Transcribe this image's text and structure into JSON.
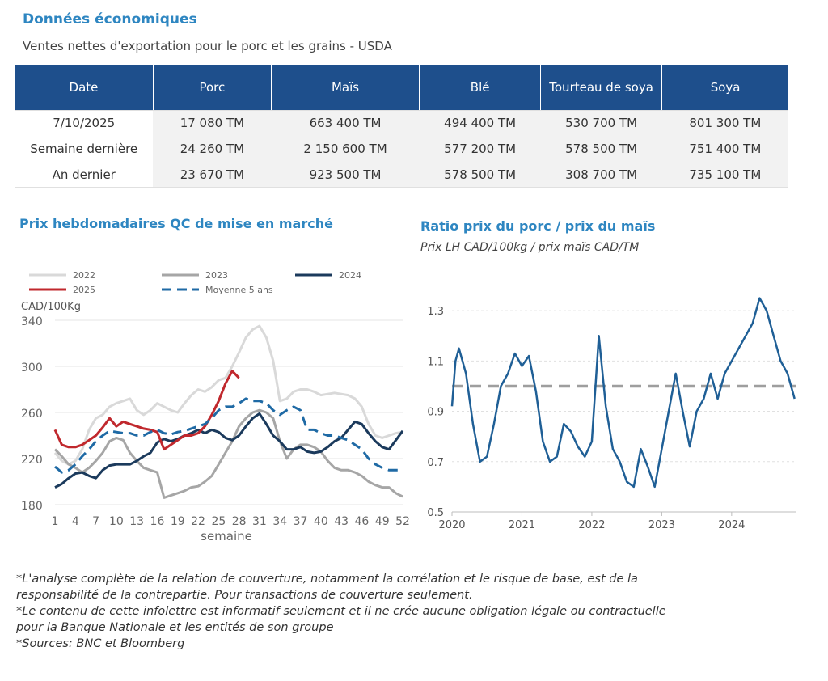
{
  "header": {
    "title": "Données économiques",
    "subtitle": "Ventes nettes d'exportation pour le porc et les grains - USDA"
  },
  "table": {
    "columns": [
      "Date",
      "Porc",
      "Maïs",
      "Blé",
      "Tourteau de soya",
      "Soya"
    ],
    "rows": [
      [
        "7/10/2025",
        "17 080 TM",
        "663 400 TM",
        "494 400 TM",
        "530 700 TM",
        "801 300 TM"
      ],
      [
        "Semaine dernière",
        "24 260 TM",
        "2 150 600 TM",
        "577 200 TM",
        "578 500 TM",
        "751 400 TM"
      ],
      [
        "An dernier",
        "23 670 TM",
        "923 500 TM",
        "578 500 TM",
        "308 700 TM",
        "735 100 TM"
      ]
    ]
  },
  "chart_data": [
    {
      "type": "line",
      "title": "Prix hebdomadaires QC de mise en marché",
      "ylabel": "CAD/100Kg",
      "xlabel": "semaine",
      "xlim": [
        1,
        52
      ],
      "ylim": [
        180,
        340
      ],
      "x_ticks": [
        1,
        4,
        7,
        10,
        13,
        16,
        19,
        22,
        25,
        28,
        31,
        34,
        37,
        40,
        43,
        46,
        49,
        52
      ],
      "y_ticks": [
        180,
        220,
        260,
        300,
        340
      ],
      "legend_position": "top",
      "series": [
        {
          "name": "2022",
          "color": "#d9d9d9",
          "style": "solid",
          "x": [
            1,
            2,
            3,
            4,
            5,
            6,
            7,
            8,
            9,
            10,
            11,
            12,
            13,
            14,
            15,
            16,
            17,
            18,
            19,
            20,
            21,
            22,
            23,
            24,
            25,
            26,
            27,
            28,
            29,
            30,
            31,
            32,
            33,
            34,
            35,
            36,
            37,
            38,
            39,
            40,
            41,
            42,
            43,
            44,
            45,
            46,
            47,
            48,
            49,
            50,
            51,
            52
          ],
          "values": [
            225,
            218,
            215,
            218,
            228,
            245,
            255,
            258,
            265,
            268,
            270,
            272,
            262,
            258,
            262,
            268,
            265,
            262,
            260,
            268,
            275,
            280,
            278,
            282,
            288,
            290,
            300,
            312,
            325,
            332,
            335,
            325,
            305,
            270,
            272,
            278,
            280,
            280,
            278,
            275,
            276,
            277,
            276,
            275,
            272,
            265,
            250,
            240,
            238,
            240,
            242,
            243
          ]
        },
        {
          "name": "2023",
          "color": "#a6a6a6",
          "style": "solid",
          "x": [
            1,
            2,
            3,
            4,
            5,
            6,
            7,
            8,
            9,
            10,
            11,
            12,
            13,
            14,
            15,
            16,
            17,
            18,
            19,
            20,
            21,
            22,
            23,
            24,
            25,
            26,
            27,
            28,
            29,
            30,
            31,
            32,
            33,
            34,
            35,
            36,
            37,
            38,
            39,
            40,
            41,
            42,
            43,
            44,
            45,
            46,
            47,
            48,
            49,
            50,
            51,
            52
          ],
          "values": [
            228,
            222,
            215,
            212,
            208,
            212,
            218,
            225,
            235,
            238,
            236,
            225,
            218,
            212,
            210,
            208,
            186,
            188,
            190,
            192,
            195,
            196,
            200,
            205,
            215,
            225,
            235,
            248,
            255,
            260,
            262,
            260,
            255,
            235,
            220,
            228,
            232,
            232,
            230,
            226,
            218,
            212,
            210,
            210,
            208,
            205,
            200,
            197,
            195,
            195,
            190,
            187
          ]
        },
        {
          "name": "2024",
          "color": "#1b3a5c",
          "style": "solid",
          "x": [
            1,
            2,
            3,
            4,
            5,
            6,
            7,
            8,
            9,
            10,
            11,
            12,
            13,
            14,
            15,
            16,
            17,
            18,
            19,
            20,
            21,
            22,
            23,
            24,
            25,
            26,
            27,
            28,
            29,
            30,
            31,
            32,
            33,
            34,
            35,
            36,
            37,
            38,
            39,
            40,
            41,
            42,
            43,
            44,
            45,
            46,
            47,
            48,
            49,
            50,
            51,
            52
          ],
          "values": [
            195,
            198,
            203,
            207,
            208,
            205,
            203,
            210,
            214,
            215,
            215,
            215,
            218,
            222,
            225,
            234,
            237,
            235,
            237,
            240,
            242,
            245,
            242,
            245,
            243,
            238,
            236,
            240,
            248,
            255,
            259,
            250,
            240,
            235,
            228,
            228,
            230,
            226,
            225,
            226,
            230,
            235,
            238,
            245,
            252,
            250,
            242,
            235,
            230,
            228,
            236,
            244
          ]
        },
        {
          "name": "2025",
          "color": "#c0282d",
          "style": "solid",
          "x": [
            1,
            2,
            3,
            4,
            5,
            6,
            7,
            8,
            9,
            10,
            11,
            12,
            13,
            14,
            15,
            16,
            17,
            18,
            19,
            20,
            21,
            22,
            23,
            24,
            25,
            26,
            27,
            28
          ],
          "values": [
            245,
            232,
            230,
            230,
            232,
            236,
            240,
            247,
            255,
            248,
            252,
            250,
            248,
            246,
            245,
            243,
            228,
            232,
            236,
            240,
            240,
            242,
            248,
            258,
            270,
            285,
            296,
            290
          ]
        },
        {
          "name": "Moyenne 5 ans",
          "color": "#1f6aa5",
          "style": "dashed",
          "x": [
            1,
            2,
            3,
            4,
            5,
            6,
            7,
            8,
            9,
            10,
            11,
            12,
            13,
            14,
            15,
            16,
            17,
            18,
            19,
            20,
            21,
            22,
            23,
            24,
            25,
            26,
            27,
            28,
            29,
            30,
            31,
            32,
            33,
            34,
            35,
            36,
            37,
            38,
            39,
            40,
            41,
            42,
            43,
            44,
            45,
            46,
            47,
            48,
            49,
            50,
            51,
            52
          ],
          "values": [
            213,
            208,
            210,
            215,
            222,
            228,
            235,
            240,
            244,
            243,
            242,
            242,
            240,
            240,
            243,
            245,
            242,
            241,
            243,
            244,
            246,
            248,
            250,
            255,
            262,
            265,
            265,
            268,
            272,
            270,
            270,
            268,
            262,
            258,
            262,
            265,
            262,
            245,
            245,
            242,
            240,
            240,
            238,
            236,
            232,
            228,
            220,
            215,
            212,
            210,
            210,
            210
          ]
        }
      ]
    },
    {
      "type": "line",
      "title": "Ratio prix du porc / prix du maïs",
      "subtitle": "Prix LH CAD/100kg / prix maïs CAD/TM",
      "x_ticks": [
        "2020",
        "2021",
        "2022",
        "2023",
        "2024"
      ],
      "y_ticks": [
        0.5,
        0.7,
        0.9,
        1.1,
        1.3
      ],
      "ylim": [
        0.5,
        1.4
      ],
      "reference_line": {
        "value": 1.0,
        "style": "dashed",
        "color": "#9e9e9e"
      },
      "series": [
        {
          "name": "Ratio",
          "color": "#1f5f96",
          "x": [
            2020.0,
            2020.05,
            2020.1,
            2020.2,
            2020.3,
            2020.4,
            2020.5,
            2020.6,
            2020.7,
            2020.8,
            2020.9,
            2021.0,
            2021.1,
            2021.2,
            2021.3,
            2021.4,
            2021.5,
            2021.6,
            2021.7,
            2021.8,
            2021.9,
            2022.0,
            2022.1,
            2022.2,
            2022.3,
            2022.4,
            2022.5,
            2022.6,
            2022.7,
            2022.8,
            2022.9,
            2023.0,
            2023.1,
            2023.2,
            2023.3,
            2023.4,
            2023.5,
            2023.6,
            2023.7,
            2023.8,
            2023.9,
            2024.0,
            2024.1,
            2024.2,
            2024.3,
            2024.4,
            2024.5,
            2024.6,
            2024.7,
            2024.8,
            2024.9
          ],
          "values": [
            0.92,
            1.1,
            1.15,
            1.05,
            0.85,
            0.7,
            0.72,
            0.85,
            1.0,
            1.05,
            1.13,
            1.08,
            1.12,
            0.98,
            0.78,
            0.7,
            0.72,
            0.85,
            0.82,
            0.76,
            0.72,
            0.78,
            1.2,
            0.92,
            0.75,
            0.7,
            0.62,
            0.6,
            0.75,
            0.68,
            0.6,
            0.75,
            0.9,
            1.05,
            0.9,
            0.76,
            0.9,
            0.95,
            1.05,
            0.95,
            1.05,
            1.1,
            1.15,
            1.2,
            1.25,
            1.35,
            1.3,
            1.2,
            1.1,
            1.05,
            0.95
          ]
        }
      ]
    }
  ],
  "charts": {
    "left_title": "Prix hebdomadaires QC de mise en marché",
    "left_ylabel": "CAD/100Kg",
    "left_xlabel": "semaine",
    "right_title": "Ratio prix du porc / prix du maïs",
    "right_subtitle": "Prix LH CAD/100kg / prix maïs CAD/TM"
  },
  "notes": [
    "*L'analyse complète de la relation de couverture, notamment la corrélation et le risque de base, est de la",
    "responsabilité de la contrepartie. Pour transactions de couverture seulement.",
    "*Le contenu de cette infolettre est informatif seulement et il ne crée aucune obligation légale ou contractuelle",
    "pour la Banque Nationale et les entités de son groupe",
    "*Sources: BNC et Bloomberg"
  ]
}
